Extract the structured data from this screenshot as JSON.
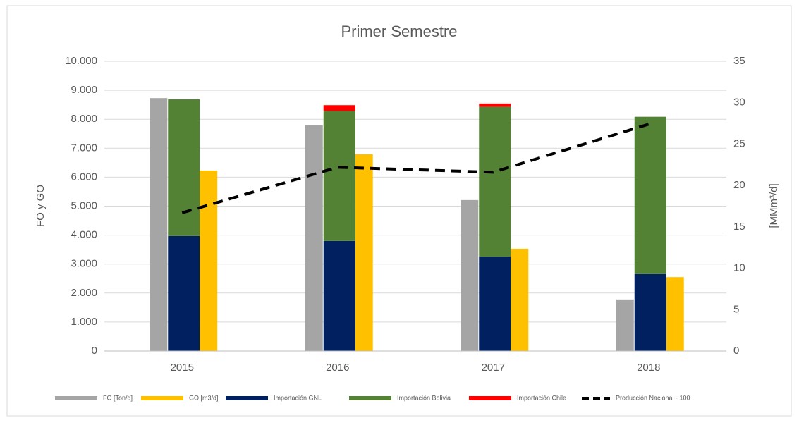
{
  "chart_data": {
    "type": "bar",
    "title": "Primer Semestre",
    "ylabel": "FO y GO",
    "y2label": "[MMm³/d]",
    "categories": [
      "2015",
      "2016",
      "2017",
      "2018"
    ],
    "ylim": [
      0,
      10000
    ],
    "yticks": [
      0,
      {
        "value": 1000,
        "label": "1.000"
      },
      {
        "value": 2000,
        "label": "2.000"
      },
      {
        "value": 3000,
        "label": "3.000"
      },
      {
        "value": 4000,
        "label": "4.000"
      },
      {
        "value": 5000,
        "label": "5.000"
      },
      {
        "value": 6000,
        "label": "6.000"
      },
      {
        "value": 7000,
        "label": "7.000"
      },
      {
        "value": 8000,
        "label": "8.000"
      },
      {
        "value": 9000,
        "label": "9.000"
      },
      {
        "value": 10000,
        "label": "10.000"
      }
    ],
    "y2lim": [
      0,
      35
    ],
    "y2ticks": [
      0,
      5,
      10,
      15,
      20,
      25,
      30,
      35
    ],
    "grid": true,
    "legend": "bottom",
    "series": [
      {
        "name": "FO [Ton/d]",
        "color": "#a5a5a5",
        "values": [
          8730,
          7790,
          5210,
          1780
        ]
      },
      {
        "name": "GO [m3/d]",
        "color": "#ffc000",
        "values": [
          6230,
          6790,
          3530,
          2550
        ]
      },
      {
        "name": "Importación GNL",
        "color": "#002060",
        "axis": "y2",
        "stack": true,
        "values": [
          13.9,
          13.3,
          11.4,
          9.3
        ]
      },
      {
        "name": "Importación Bolivia",
        "color": "#548235",
        "axis": "y2",
        "stack": true,
        "values": [
          16.5,
          15.7,
          18.1,
          19.0
        ]
      },
      {
        "name": "Importación Chile",
        "color": "#ff0000",
        "axis": "y2",
        "stack": true,
        "values": [
          0,
          0.7,
          0.4,
          0
        ]
      },
      {
        "name": "Producción Nacional - 100",
        "color": "#000000",
        "axis": "y2",
        "line": true,
        "values": [
          16.7,
          22.2,
          21.6,
          27.4
        ]
      }
    ]
  }
}
